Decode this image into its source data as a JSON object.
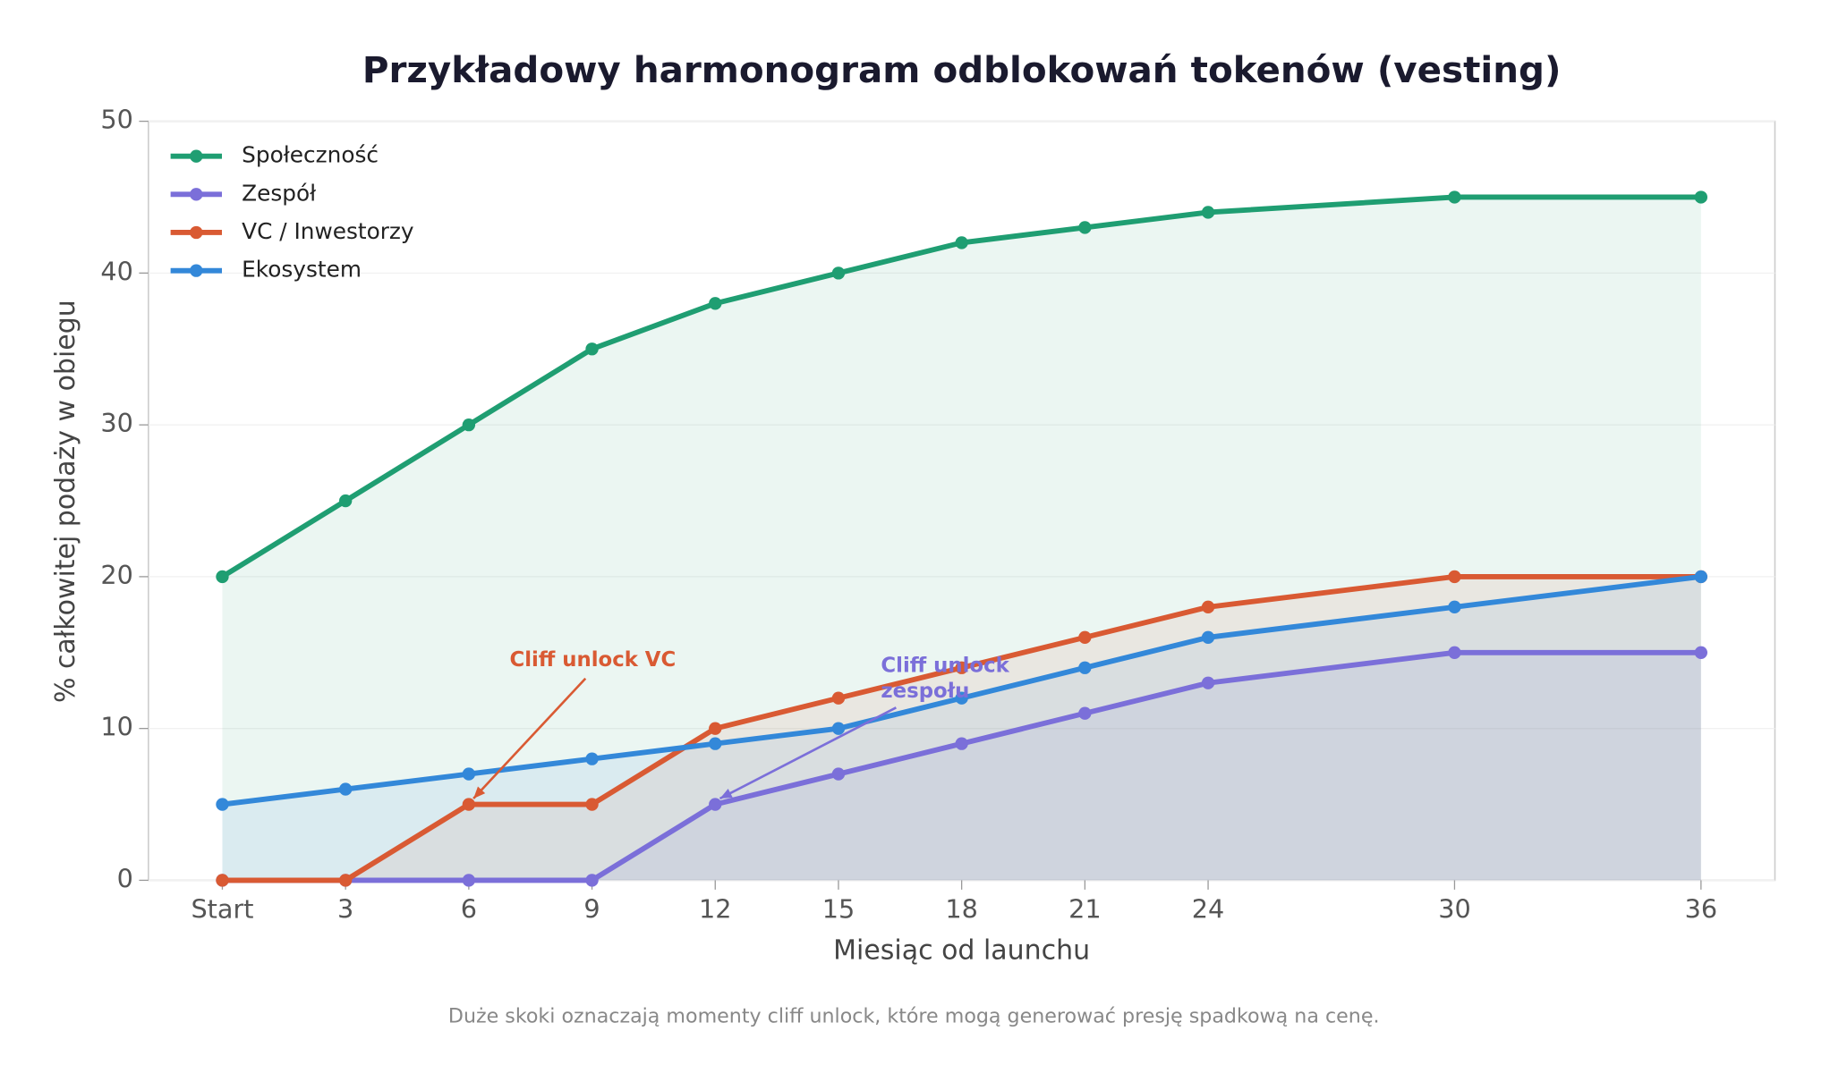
{
  "chart_data": {
    "type": "line",
    "title": "Przykładowy harmonogram odblokowań tokenów (vesting)",
    "x_label": "Miesiąc od launchu",
    "y_label": "% całkowitej podaży w obiegu",
    "note": "Duże skoki oznaczają momenty cliff unlock, które mogą generować presję spadkową na cenę.",
    "x": [
      0,
      3,
      6,
      9,
      12,
      15,
      18,
      21,
      24,
      30,
      36
    ],
    "xlim": [
      -1.8,
      37.8
    ],
    "xticks": [
      {
        "value": 0,
        "label": "Start"
      },
      3,
      6,
      9,
      12,
      15,
      18,
      21,
      24,
      30,
      36
    ],
    "ylim": [
      0,
      50
    ],
    "yticks": [
      0,
      10,
      20,
      30,
      40,
      50
    ],
    "grid": true,
    "fill_area": true,
    "legend": "upper-left",
    "series": [
      {
        "name": "Społeczność",
        "color": "#1f9e72",
        "values": [
          20,
          25,
          30,
          35,
          38,
          40,
          42,
          43,
          44,
          45,
          45
        ]
      },
      {
        "name": "Zespół",
        "color": "#7b6fd9",
        "values": [
          0,
          0,
          0,
          0,
          5,
          7,
          9,
          11,
          13,
          15,
          15
        ]
      },
      {
        "name": "VC / Inwestorzy",
        "color": "#d95a33",
        "values": [
          0,
          0,
          5,
          5,
          10,
          12,
          14,
          16,
          18,
          20,
          20
        ]
      },
      {
        "name": "Ekosystem",
        "color": "#3388d9",
        "values": [
          5,
          6,
          7,
          8,
          9,
          10,
          12,
          14,
          16,
          18,
          20
        ]
      }
    ],
    "annotations": [
      {
        "text": "Cliff unlock VC",
        "x": 6,
        "y": 5,
        "color": "#d95a33"
      },
      {
        "text": "Cliff unlock\nzespołu",
        "x": 12,
        "y": 5,
        "color": "#7b6fd9"
      }
    ]
  }
}
